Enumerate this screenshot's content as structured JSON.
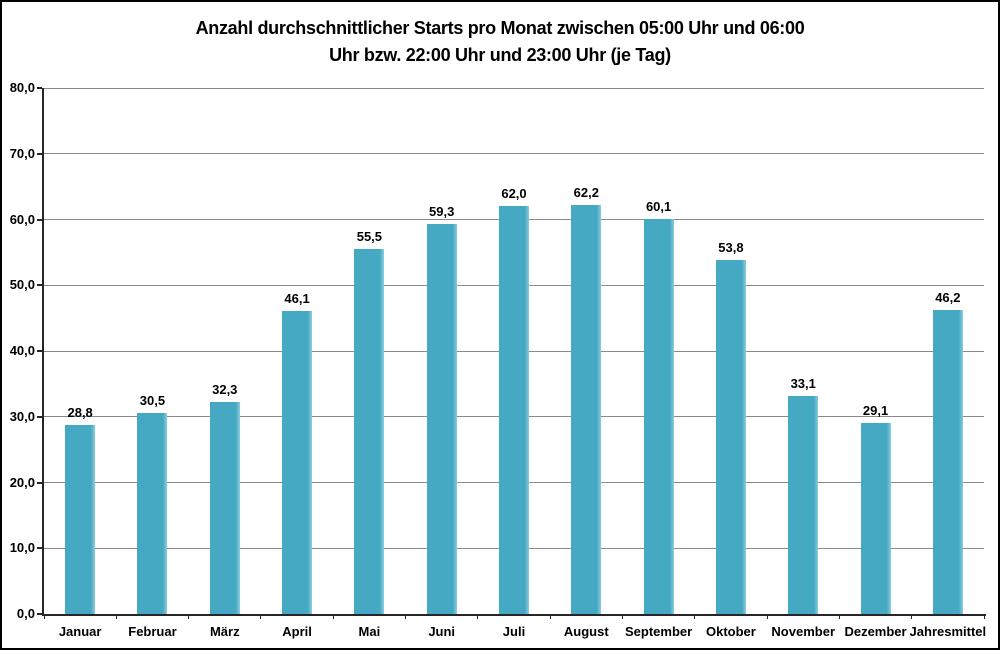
{
  "chart_data": {
    "type": "bar",
    "title": "Anzahl durchschnittlicher Starts pro Monat zwischen 05:00 Uhr und 06:00 Uhr bzw. 22:00 Uhr und 23:00 Uhr (je Tag)",
    "title_lines": [
      "Anzahl durchschnittlicher Starts pro Monat zwischen 05:00 Uhr und 06:00",
      "Uhr bzw. 22:00 Uhr und 23:00 Uhr (je Tag)"
    ],
    "categories": [
      "Januar",
      "Februar",
      "März",
      "April",
      "Mai",
      "Juni",
      "Juli",
      "August",
      "September",
      "Oktober",
      "November",
      "Dezember",
      "Jahresmittel"
    ],
    "values": [
      28.8,
      30.5,
      32.3,
      46.1,
      55.5,
      59.3,
      62.0,
      62.2,
      60.1,
      53.8,
      33.1,
      29.1,
      46.2
    ],
    "value_labels": [
      "28,8",
      "30,5",
      "32,3",
      "46,1",
      "55,5",
      "59,3",
      "62,0",
      "62,2",
      "60,1",
      "53,8",
      "33,1",
      "29,1",
      "46,2"
    ],
    "xlabel": "",
    "ylabel": "",
    "ylim": [
      0,
      80
    ],
    "ytick_step": 10,
    "ytick_labels": [
      "0,0",
      "10,0",
      "20,0",
      "30,0",
      "40,0",
      "50,0",
      "60,0",
      "70,0",
      "80,0"
    ],
    "grid": true,
    "legend": null,
    "colors": {
      "bar": "#45A9C4",
      "bar_highlight": "#8FCBDB",
      "gridline": "#8A8A8A",
      "axis": "#262626",
      "text": "#000000",
      "background": "#FFFFFF",
      "frame_border": "#000000"
    }
  }
}
